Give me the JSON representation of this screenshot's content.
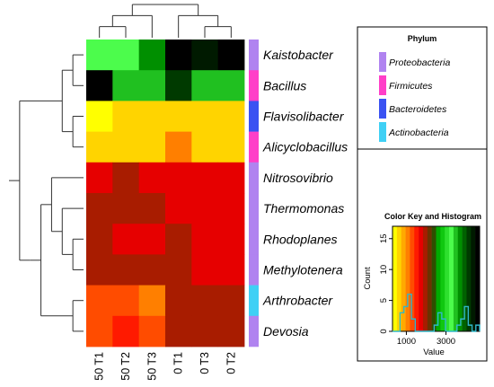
{
  "chart_data": {
    "type": "heatmap",
    "columns": [
      "50 T1",
      "50 T2",
      "50 T3",
      "0 T1",
      "0 T3",
      "0 T2"
    ],
    "rows": [
      "Kaistobacter",
      "Bacillus",
      "Flavisolibacter",
      "Alicyclobacillus",
      "Nitrosovibrio",
      "Thermomonas",
      "Rhodoplanes",
      "Methylotenera",
      "Arthrobacter",
      "Devosia"
    ],
    "values": [
      [
        3300,
        3300,
        3600,
        4600,
        4300,
        4600
      ],
      [
        4600,
        3400,
        3400,
        4100,
        3400,
        3400
      ],
      [
        500,
        700,
        700,
        600,
        700,
        700
      ],
      [
        700,
        700,
        700,
        1000,
        700,
        700
      ],
      [
        1700,
        1900,
        1700,
        1700,
        1700,
        1700
      ],
      [
        1900,
        1900,
        1900,
        1700,
        1700,
        1700
      ],
      [
        1900,
        1700,
        1700,
        1900,
        1700,
        1700
      ],
      [
        1900,
        1900,
        1900,
        1900,
        1700,
        1700
      ],
      [
        1300,
        1300,
        1100,
        1900,
        1900,
        1900
      ],
      [
        1300,
        1600,
        1300,
        1900,
        1900,
        1900
      ]
    ],
    "row_phylum": [
      "Proteobacteria",
      "Firmicutes",
      "Bacteroidetes",
      "Firmicutes",
      "Proteobacteria",
      "Proteobacteria",
      "Proteobacteria",
      "Proteobacteria",
      "Actinobacteria",
      "Proteobacteria"
    ],
    "phylum_legend": {
      "title": "Phylum",
      "items": [
        {
          "label": "Proteobacteria",
          "color": "#b083f0"
        },
        {
          "label": "Firmicutes",
          "color": "#ff3fc8"
        },
        {
          "label": "Bacteroidetes",
          "color": "#3a52f2"
        },
        {
          "label": "Actinobacteria",
          "color": "#3fd0f5"
        }
      ]
    },
    "color_key": {
      "title": "Color Key and Histogram",
      "xlabel": "Value",
      "ylabel": "Count",
      "xticks": [
        1000,
        3000
      ],
      "yticks": [
        0,
        5,
        10,
        15
      ],
      "xlim": [
        300,
        4700
      ],
      "ylim": [
        0,
        17
      ],
      "histogram_counts": [
        0,
        0,
        3,
        4,
        6,
        2,
        0,
        0,
        0,
        0,
        0,
        1,
        3,
        2,
        0,
        0,
        0,
        1,
        2,
        4,
        1,
        0,
        1
      ],
      "density_line_color": "#31b6c9",
      "colormap": [
        "#ffff00",
        "#ffd400",
        "#ffaa00",
        "#ff7f00",
        "#ff4c00",
        "#ff1a00",
        "#e60000",
        "#a81c00",
        "#6b3200",
        "#2e4e00",
        "#00aa00",
        "#10c810",
        "#2ee02e",
        "#4cfc4c",
        "#20c020",
        "#008f00",
        "#006200",
        "#003a00",
        "#001a00",
        "#000000"
      ]
    },
    "row_dendrogram": "((((Kaistobacter,Bacillus),(Flavisolibacter,Alicyclobacillus)),(((Nitrosovibrio,(Thermomonas,(Rhodoplanes,Methylotenera))),(Arthrobacter,Devosia))))",
    "col_dendrogram": "(((50 T1,50 T2),50 T3),(0 T1,(0 T3,0 T2)))"
  }
}
